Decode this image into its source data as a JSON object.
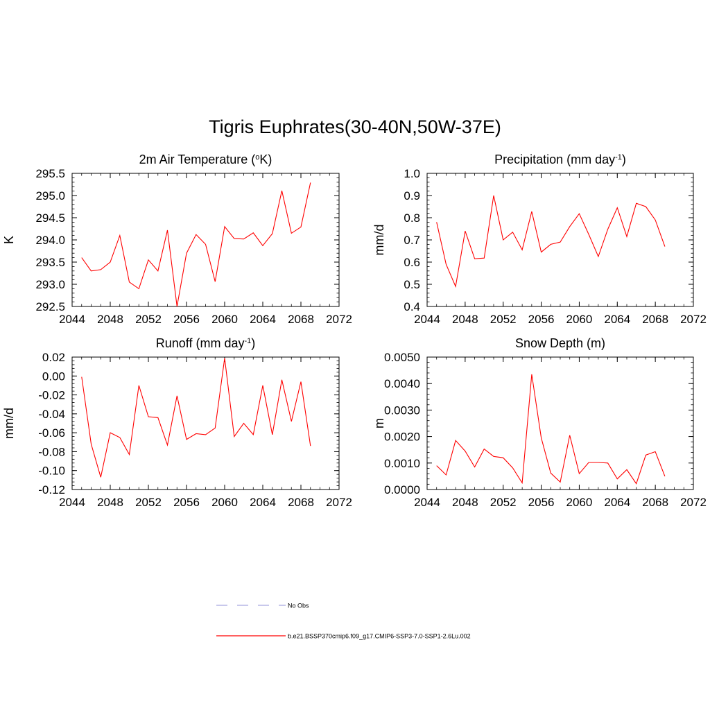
{
  "title": "Tigris Euphrates(30-40N,50W-37E)",
  "chart_data": [
    {
      "type": "line",
      "title": "2m Air Temperature (°K)",
      "title_parts": {
        "before": "2m Air Temperature (",
        "sup": "o",
        "after": "K)"
      },
      "ylabel": "K",
      "xlim": [
        2044,
        2072
      ],
      "ylim": [
        292.5,
        295.5
      ],
      "xticks": [
        "2044",
        "2048",
        "2052",
        "2056",
        "2060",
        "2064",
        "2068",
        "2072"
      ],
      "yticks": [
        "292.5",
        "293.0",
        "293.5",
        "294.0",
        "294.5",
        "295.0",
        "295.5"
      ],
      "x": [
        2045,
        2046,
        2047,
        2048,
        2049,
        2050,
        2051,
        2052,
        2053,
        2054,
        2055,
        2056,
        2057,
        2058,
        2059,
        2060,
        2061,
        2062,
        2063,
        2064,
        2065,
        2066,
        2067,
        2068,
        2069
      ],
      "values": [
        293.6,
        293.3,
        293.33,
        293.5,
        294.1,
        293.05,
        292.9,
        293.55,
        293.3,
        294.22,
        292.5,
        293.7,
        294.12,
        293.9,
        293.06,
        294.3,
        294.03,
        294.02,
        294.16,
        293.87,
        294.14,
        295.11,
        294.15,
        294.29,
        295.29
      ]
    },
    {
      "type": "line",
      "title": "Precipitation (mm day-1)",
      "title_parts": {
        "before": "Precipitation (mm day",
        "sup": "-1",
        "after": ")"
      },
      "ylabel": "mm/d",
      "xlim": [
        2044,
        2072
      ],
      "ylim": [
        0.4,
        1.0
      ],
      "xticks": [
        "2044",
        "2048",
        "2052",
        "2056",
        "2060",
        "2064",
        "2068",
        "2072"
      ],
      "yticks": [
        "0.4",
        "0.5",
        "0.6",
        "0.7",
        "0.8",
        "0.9",
        "1.0"
      ],
      "x": [
        2045,
        2046,
        2047,
        2048,
        2049,
        2050,
        2051,
        2052,
        2053,
        2054,
        2055,
        2056,
        2057,
        2058,
        2059,
        2060,
        2061,
        2062,
        2063,
        2064,
        2065,
        2066,
        2067,
        2068,
        2069
      ],
      "values": [
        0.78,
        0.59,
        0.49,
        0.74,
        0.615,
        0.618,
        0.9,
        0.7,
        0.735,
        0.655,
        0.828,
        0.645,
        0.68,
        0.69,
        0.76,
        0.818,
        0.725,
        0.625,
        0.748,
        0.845,
        0.715,
        0.865,
        0.85,
        0.79,
        0.67
      ]
    },
    {
      "type": "line",
      "title": "Runoff (mm day-1)",
      "title_parts": {
        "before": "Runoff (mm day",
        "sup": "-1",
        "after": ")"
      },
      "ylabel": "mm/d",
      "xlim": [
        2044,
        2072
      ],
      "ylim": [
        -0.12,
        0.02
      ],
      "xticks": [
        "2044",
        "2048",
        "2052",
        "2056",
        "2060",
        "2064",
        "2068",
        "2072"
      ],
      "yticks": [
        "-0.12",
        "-0.10",
        "-0.08",
        "-0.06",
        "-0.04",
        "-0.02",
        "0.00",
        "0.02"
      ],
      "x": [
        2045,
        2046,
        2047,
        2048,
        2049,
        2050,
        2051,
        2052,
        2053,
        2054,
        2055,
        2056,
        2057,
        2058,
        2059,
        2060,
        2061,
        2062,
        2063,
        2064,
        2065,
        2066,
        2067,
        2068,
        2069
      ],
      "values": [
        -0.001,
        -0.072,
        -0.107,
        -0.06,
        -0.065,
        -0.083,
        -0.01,
        -0.043,
        -0.044,
        -0.073,
        -0.021,
        -0.067,
        -0.061,
        -0.062,
        -0.055,
        0.019,
        -0.064,
        -0.05,
        -0.062,
        -0.01,
        -0.062,
        -0.004,
        -0.048,
        -0.006,
        -0.074
      ]
    },
    {
      "type": "line",
      "title": "Snow Depth (m)",
      "title_parts": {
        "before": "Snow Depth (m)",
        "sup": "",
        "after": ""
      },
      "ylabel": "m",
      "xlim": [
        2044,
        2072
      ],
      "ylim": [
        0.0,
        0.005
      ],
      "xticks": [
        "2044",
        "2048",
        "2052",
        "2056",
        "2060",
        "2064",
        "2068",
        "2072"
      ],
      "yticks": [
        "0.0000",
        "0.0010",
        "0.0020",
        "0.0030",
        "0.0040",
        "0.0050"
      ],
      "x": [
        2045,
        2046,
        2047,
        2048,
        2049,
        2050,
        2051,
        2052,
        2053,
        2054,
        2055,
        2056,
        2057,
        2058,
        2059,
        2060,
        2061,
        2062,
        2063,
        2064,
        2065,
        2066,
        2067,
        2068,
        2069
      ],
      "values": [
        0.0009,
        0.00055,
        0.00185,
        0.00145,
        0.00085,
        0.00153,
        0.00125,
        0.0012,
        0.00082,
        0.00025,
        0.00435,
        0.00195,
        0.00062,
        0.00028,
        0.00205,
        0.0006,
        0.00102,
        0.00102,
        0.001,
        0.0004,
        0.00075,
        0.00022,
        0.0013,
        0.00143,
        0.0005
      ]
    }
  ],
  "legend": {
    "entries": [
      {
        "label": "No Obs",
        "color": "#a8a8e0",
        "dash": true
      },
      {
        "label": "b.e21.BSSP370cmip6.f09_g17.CMIP6-SSP3-7.0-SSP1-2.6Lu.002",
        "color": "#ff0000",
        "dash": false
      }
    ]
  },
  "colors": {
    "series": "#ff0000",
    "axis": "#000000"
  }
}
